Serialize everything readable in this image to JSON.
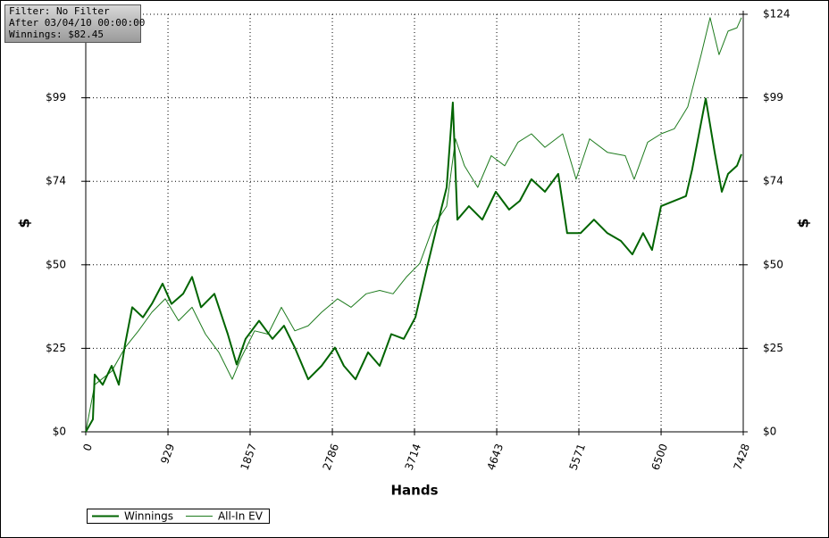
{
  "chart_data": {
    "type": "line",
    "info": [
      "Filter: No Filter",
      "After 03/04/10 00:00:00",
      "Winnings: $82.45"
    ],
    "xlabel": "Hands",
    "ylabel": "$",
    "xlim": [
      0,
      7428
    ],
    "xticks": [
      0,
      929,
      1857,
      2786,
      3714,
      4643,
      5571,
      6500,
      7428
    ],
    "ylim": [
      0,
      124
    ],
    "yticks": [
      {
        "value": 0,
        "label": "$0"
      },
      {
        "value": 24.8,
        "label": "$25"
      },
      {
        "value": 49.6,
        "label": "$50"
      },
      {
        "value": 74.4,
        "label": "$74"
      },
      {
        "value": 99.2,
        "label": "$99"
      },
      {
        "value": 124,
        "label": "$124"
      }
    ],
    "grid": true,
    "legend": "bottom-left",
    "series": [
      {
        "name": "Winnings",
        "color": "#006400",
        "width": 2,
        "x": [
          0,
          81,
          101,
          192,
          293,
          373,
          444,
          525,
          646,
          747,
          868,
          969,
          1100,
          1201,
          1302,
          1453,
          1605,
          1705,
          1806,
          1958,
          2109,
          2240,
          2362,
          2513,
          2664,
          2815,
          2916,
          3048,
          3189,
          3320,
          3452,
          3593,
          3724,
          3855,
          3976,
          4077,
          4147,
          4198,
          4329,
          4480,
          4632,
          4783,
          4904,
          5035,
          5187,
          5338,
          5439,
          5590,
          5742,
          5893,
          6045,
          6176,
          6297,
          6398,
          6499,
          6650,
          6781,
          6852,
          7004,
          7105,
          7186,
          7256,
          7357,
          7408
        ],
        "values": [
          0,
          3.7,
          17,
          14,
          19.6,
          14,
          26,
          37,
          34,
          38,
          44,
          38,
          41,
          46,
          37,
          41,
          29,
          20,
          27.6,
          33,
          27.6,
          31.5,
          25,
          15.6,
          19.6,
          25,
          19.6,
          15.6,
          23.6,
          19.6,
          29,
          27.6,
          34,
          48.8,
          62,
          72.6,
          97.8,
          63,
          67,
          63,
          71.3,
          66,
          68.6,
          75,
          71.3,
          76.6,
          59,
          59,
          63,
          59,
          56.7,
          52.7,
          59,
          54,
          67,
          68.6,
          70,
          78,
          99,
          83,
          71.3,
          76.6,
          79,
          82.45
        ]
      },
      {
        "name": "All-In EV",
        "color": "#1e7b1e",
        "width": 1,
        "x": [
          0,
          101,
          293,
          444,
          595,
          747,
          898,
          1049,
          1201,
          1352,
          1504,
          1655,
          1756,
          1907,
          2059,
          2210,
          2362,
          2513,
          2664,
          2845,
          2997,
          3168,
          3320,
          3472,
          3623,
          3774,
          3926,
          4077,
          4177,
          4278,
          4429,
          4581,
          4733,
          4884,
          5035,
          5187,
          5388,
          5540,
          5692,
          5893,
          6095,
          6196,
          6348,
          6499,
          6650,
          6801,
          6953,
          7054,
          7155,
          7256,
          7357,
          7408
        ],
        "values": [
          0,
          14,
          18,
          25,
          30,
          35.5,
          39.5,
          33,
          37,
          29,
          23.6,
          15.6,
          22,
          30,
          29,
          37,
          30,
          31.5,
          35.5,
          39.5,
          37,
          41,
          42,
          41,
          46,
          50,
          61,
          67,
          87,
          79,
          72.6,
          82,
          79,
          86,
          88.5,
          84.5,
          88.5,
          75,
          87,
          83,
          82,
          75,
          86,
          88.5,
          90,
          96.5,
          112,
          123,
          112,
          119,
          120,
          123
        ]
      }
    ]
  }
}
